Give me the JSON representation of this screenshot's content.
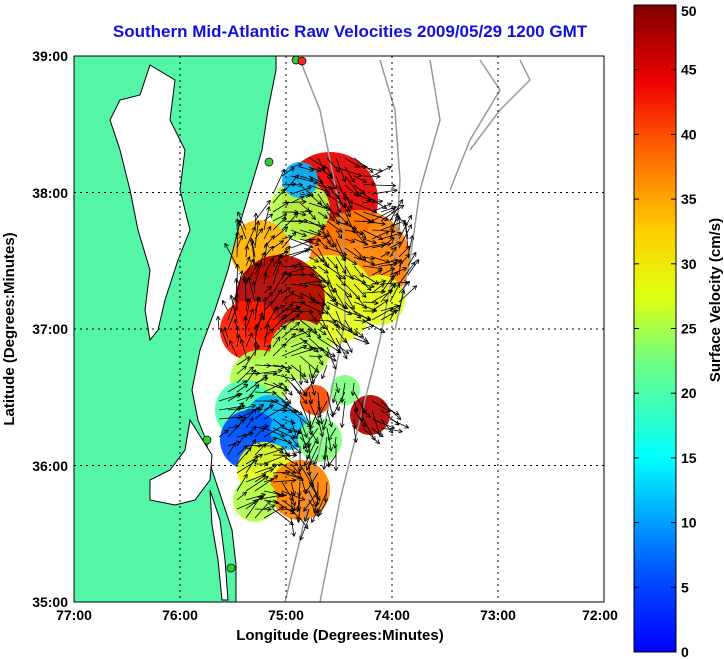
{
  "title": "Southern Mid-Atlantic Raw Velocities 2009/05/29 1200 GMT",
  "x_axis": {
    "label": "Longitude (Degrees:Minutes)",
    "ticks": [
      "77:00",
      "76:00",
      "75:00",
      "74:00",
      "73:00",
      "72:00"
    ]
  },
  "y_axis": {
    "label": "Latitude (Degrees:Minutes)",
    "ticks": [
      "39:00",
      "38:00",
      "37:00",
      "36:00",
      "35:00"
    ]
  },
  "colorbar": {
    "label": "Surface Velocity (cm/s)",
    "ticks": [
      "0",
      "5",
      "10",
      "15",
      "20",
      "25",
      "30",
      "35",
      "40",
      "45",
      "50"
    ],
    "range": [
      0,
      50
    ],
    "colormap": "jet"
  },
  "colors": {
    "land": "#55f5a8",
    "coast": "#000000",
    "bathymetry": "#999999",
    "arrows": "#000000",
    "station": "#33cc33",
    "station_alt": "#ff2020",
    "title": "#1010e0"
  },
  "map": {
    "lon_range": [
      -77,
      -72
    ],
    "lat_range": [
      35,
      39
    ],
    "grid": true
  }
}
